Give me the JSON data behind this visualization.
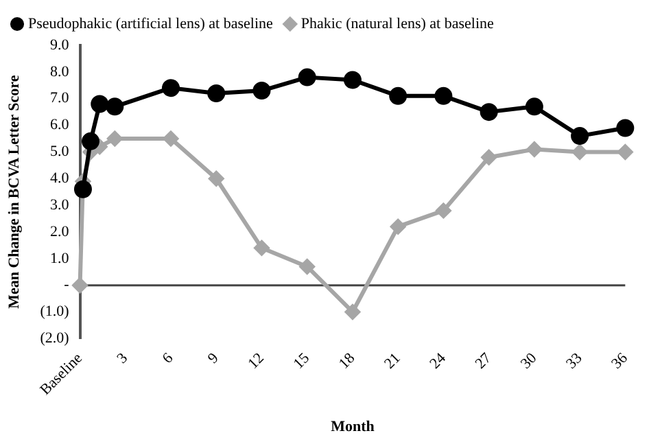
{
  "chart_data": {
    "type": "line",
    "xlabel": "Month",
    "ylabel": "Mean Change in BCVA Letter Score",
    "xlim": [
      0,
      36
    ],
    "xticks": [
      {
        "value": 0,
        "label": "Baseline"
      },
      3,
      6,
      9,
      12,
      15,
      18,
      21,
      24,
      27,
      30,
      33,
      36
    ],
    "ylim": [
      -2,
      9
    ],
    "yticks": [
      {
        "value": -2,
        "label": "(2.0)"
      },
      {
        "value": -1,
        "label": "(1.0)"
      },
      {
        "value": 0,
        "label": "-"
      },
      {
        "value": 1,
        "label": "1.0"
      },
      {
        "value": 2,
        "label": "2.0"
      },
      {
        "value": 3,
        "label": "3.0"
      },
      {
        "value": 4,
        "label": "4.0"
      },
      {
        "value": 5,
        "label": "5.0"
      },
      {
        "value": 6,
        "label": "6.0"
      },
      {
        "value": 7,
        "label": "7.0"
      },
      {
        "value": 8,
        "label": "8.0"
      },
      {
        "value": 9,
        "label": "9.0"
      }
    ],
    "grid": false,
    "legend": "top",
    "line_style": "solid",
    "ref_lines": [
      {
        "axis": "y",
        "value": 0,
        "color": "#444444"
      }
    ],
    "series": [
      {
        "name": "Pseudophakic (artificial lens) at baseline",
        "color": "#000000",
        "marker": "circle",
        "x": [
          0.2,
          0.7,
          1.3,
          2.3,
          6,
          9,
          12,
          15,
          18,
          21,
          24,
          27,
          30,
          33,
          36
        ],
        "values": [
          3.6,
          5.4,
          6.8,
          6.7,
          7.4,
          7.2,
          7.3,
          7.8,
          7.7,
          7.1,
          7.1,
          6.5,
          6.7,
          5.6,
          5.9
        ]
      },
      {
        "name": "Phakic (natural lens) at baseline",
        "color": "#a6a6a6",
        "marker": "diamond",
        "x": [
          0,
          0.2,
          0.7,
          1.3,
          2.3,
          6,
          9,
          12,
          15,
          18,
          21,
          24,
          27,
          30,
          33,
          36
        ],
        "values": [
          0,
          3.9,
          5.0,
          5.2,
          5.5,
          5.5,
          4.0,
          1.4,
          0.7,
          -1.0,
          2.2,
          2.8,
          4.8,
          5.1,
          5.0,
          5.0
        ]
      }
    ]
  }
}
